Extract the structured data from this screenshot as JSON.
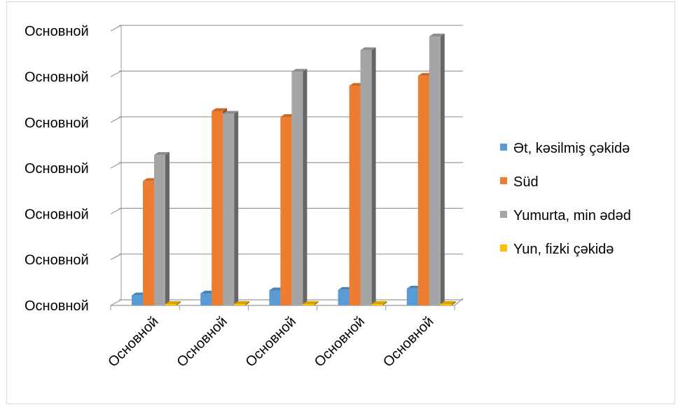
{
  "chart_data": {
    "type": "bar",
    "title": "",
    "xlabel": "",
    "ylabel": "",
    "categories": [
      "Основной",
      "Основной",
      "Основной",
      "Основной",
      "Основной"
    ],
    "y_tick_labels": [
      "Основной",
      "Основной",
      "Основной",
      "Основной",
      "Основной",
      "Основной",
      "Основной"
    ],
    "ylim": [
      0,
      6
    ],
    "grid": true,
    "legend_position": "right",
    "series": [
      {
        "name": "Ət, kəsilmiş çəkidə",
        "color": "#5B9BD5",
        "values": [
          0.22,
          0.26,
          0.33,
          0.34,
          0.37
        ]
      },
      {
        "name": "Süd",
        "color": "#ED7D31",
        "values": [
          2.72,
          4.25,
          4.12,
          4.8,
          5.02
        ]
      },
      {
        "name": "Yumurta, min ədəd",
        "color": "#A5A5A5",
        "values": [
          3.29,
          4.19,
          5.11,
          5.58,
          5.88
        ]
      },
      {
        "name": "Yun, fizki çəkidə",
        "color": "#FFC000",
        "values": [
          0.01,
          0.01,
          0.01,
          0.01,
          0.01
        ]
      }
    ]
  }
}
